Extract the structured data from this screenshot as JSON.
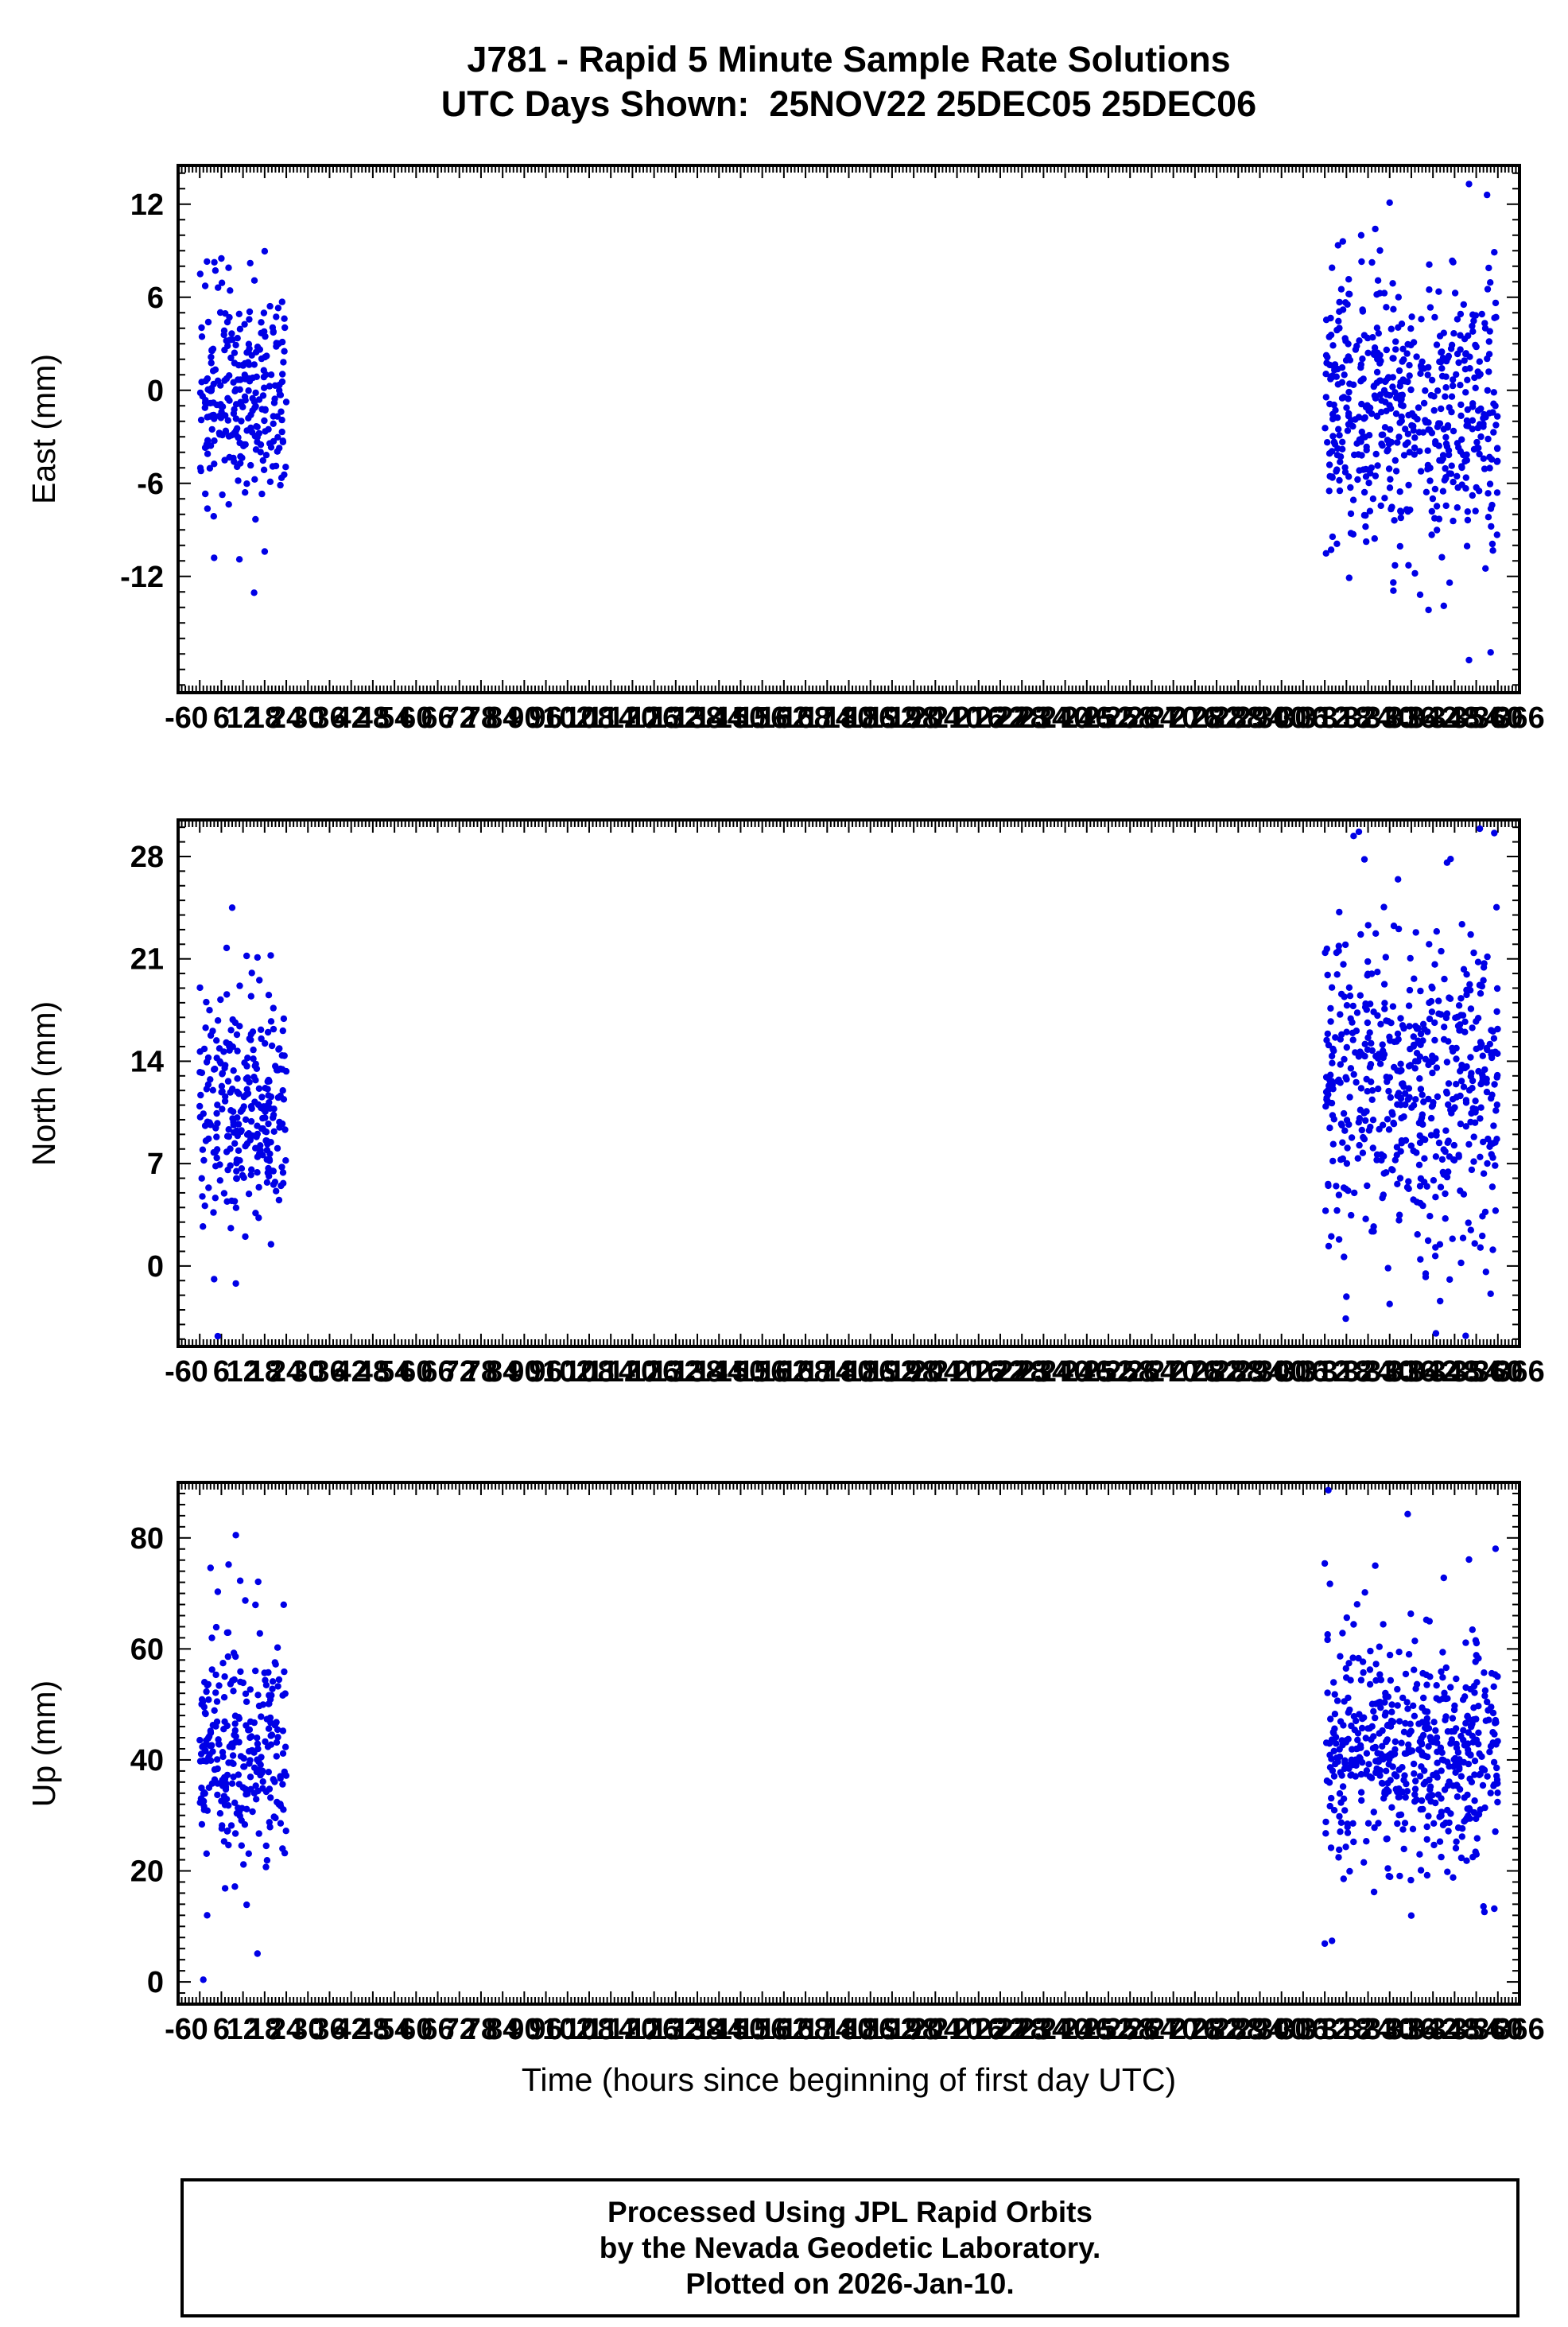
{
  "footer": {
    "line1": "Processed Using JPL Rapid Orbits",
    "line2": "by the Nevada Geodetic Laboratory.",
    "line3": "Plotted on 2026-Jan-10."
  },
  "chart_data": {
    "type": "scatter",
    "title": "J781 - Rapid 5 Minute Sample Rate Solutions",
    "subtitle": "UTC Days Shown:  25NOV22 25DEC05 25DEC06",
    "xlabel": "Time (hours since beginning of first day UTC)",
    "station": "J781",
    "utc_days": [
      "25NOV22",
      "25DEC05",
      "25DEC06"
    ],
    "x_range": [
      -6,
      366
    ],
    "x_major_tick": 6,
    "x_minor_tick": 1,
    "marker_color": "#0000e6",
    "legend": "none",
    "grid": false,
    "panels": [
      {
        "ylabel": "East (mm)",
        "y_range": [
          -19.5,
          14.5
        ],
        "y_ticks": [
          -12,
          -6,
          0,
          6,
          12
        ],
        "y_minor_tick": 1,
        "clusters": [
          {
            "x_start": 0,
            "x_end": 24,
            "n": 265,
            "mean": -0.6,
            "sd": 3.3,
            "seed": 11,
            "extra": [
              [
                2,
                8.3
              ],
              [
                6,
                8.5
              ],
              [
                14,
                8.2
              ],
              [
                4,
                -10.8
              ],
              [
                11,
                -10.9
              ],
              [
                8,
                7.9
              ]
            ]
          },
          {
            "x_start": 312,
            "x_end": 360,
            "n": 530,
            "mean": -1.4,
            "sd": 4.1,
            "seed": 12,
            "extra": [
              [
                317,
                9.6
              ],
              [
                326,
                10.4
              ],
              [
                330,
                12.1
              ],
              [
                352,
                13.3
              ],
              [
                357,
                12.6
              ],
              [
                359,
                8.9
              ],
              [
                331,
                -12.4
              ],
              [
                345,
                -13.9
              ],
              [
                352,
                -17.4
              ],
              [
                358,
                -16.9
              ],
              [
                337,
                -11.8
              ],
              [
                314,
                7.9
              ]
            ]
          }
        ]
      },
      {
        "ylabel": "North (mm)",
        "y_range": [
          -5.5,
          30.5
        ],
        "y_ticks": [
          0,
          7,
          14,
          21,
          28
        ],
        "y_minor_tick": 1,
        "clusters": [
          {
            "x_start": 0,
            "x_end": 24,
            "n": 265,
            "mean": 11.2,
            "sd": 4.0,
            "seed": 21,
            "extra": [
              [
                9,
                24.5
              ],
              [
                13,
                21.2
              ],
              [
                4,
                -0.9
              ],
              [
                10,
                -1.2
              ],
              [
                5,
                -4.8
              ],
              [
                16,
                21.1
              ]
            ]
          },
          {
            "x_start": 312,
            "x_end": 360,
            "n": 530,
            "mean": 12.6,
            "sd": 5.2,
            "seed": 22,
            "extra": [
              [
                316,
                24.2
              ],
              [
                320,
                29.4
              ],
              [
                323,
                27.8
              ],
              [
                355,
                29.9
              ],
              [
                359,
                29.6
              ],
              [
                318,
                -2.1
              ],
              [
                330,
                -2.6
              ],
              [
                344,
                -2.4
              ],
              [
                358,
                -1.9
              ]
            ]
          }
        ]
      },
      {
        "ylabel": "Up (mm)",
        "y_range": [
          -4,
          90
        ],
        "y_ticks": [
          0,
          20,
          40,
          60,
          80
        ],
        "y_minor_tick": 2,
        "clusters": [
          {
            "x_start": 0,
            "x_end": 24,
            "n": 265,
            "mean": 42,
            "sd": 10.5,
            "seed": 31,
            "extra": [
              [
                10,
                80.5
              ],
              [
                8,
                75.2
              ],
              [
                3,
                74.6
              ],
              [
                5,
                70.3
              ],
              [
                1,
                0.4
              ],
              [
                16,
                5.1
              ],
              [
                13,
                13.9
              ]
            ]
          },
          {
            "x_start": 312,
            "x_end": 360,
            "n": 530,
            "mean": 41,
            "sd": 10,
            "seed": 32,
            "extra": [
              [
                313,
                88.6
              ],
              [
                312,
                75.4
              ],
              [
                335,
                84.3
              ],
              [
                352,
                76.1
              ],
              [
                345,
                72.8
              ],
              [
                326,
                75.0
              ],
              [
                312,
                6.9
              ],
              [
                314,
                7.4
              ],
              [
                356,
                13.6
              ],
              [
                359,
                13.2
              ]
            ]
          }
        ]
      }
    ]
  }
}
